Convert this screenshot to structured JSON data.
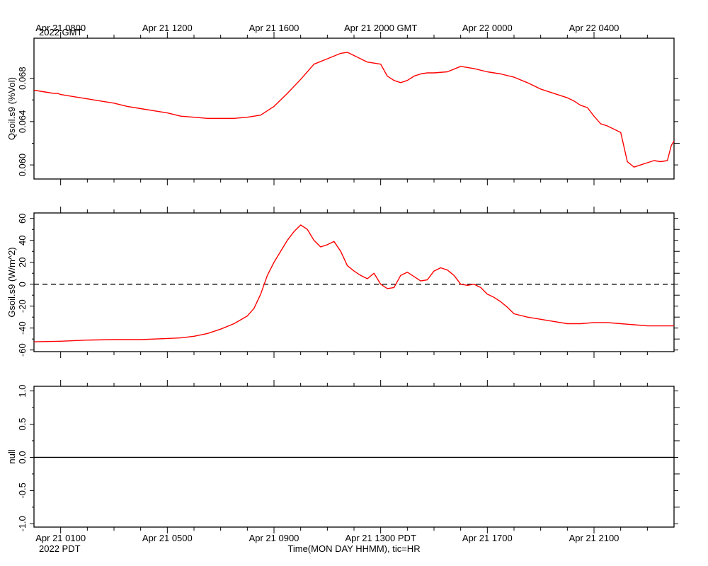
{
  "top_axis": {
    "labels": [
      "Apr 21 0800",
      "Apr 21 1200",
      "Apr 21 1600",
      "Apr 21 2000 GMT",
      "Apr 22 0000",
      "Apr 22 0400"
    ],
    "year_label": "2022 GMT"
  },
  "bottom_axis": {
    "labels": [
      "Apr 21 0100",
      "Apr 21 0500",
      "Apr 21 0900",
      "Apr 21 1300 PDT",
      "Apr 21 1700",
      "Apr 21 2100"
    ],
    "year_label": "2022 PDT",
    "title": "Time(MON DAY HHMM), tic=HR"
  },
  "colors": {
    "series": "#ff0000",
    "axis": "#000000",
    "zero_line": "#000000"
  },
  "chart_data": [
    {
      "type": "line",
      "ylabel": "Qsoil.s9 (%Vol)",
      "ylim": [
        0.0587,
        0.0717
      ],
      "yticks": [
        "0.060",
        "0.064",
        "0.068"
      ],
      "ytick_values": [
        0.06,
        0.064,
        0.068
      ],
      "xlim_hours_pdt": [
        0,
        24
      ],
      "series": [
        {
          "x_hours": [
            0,
            0.5,
            0.75,
            0.9,
            1,
            1.5,
            2,
            2.5,
            3,
            3.5,
            4,
            4.5,
            5,
            5.5,
            6,
            6.5,
            7,
            7.5,
            8,
            8.5,
            9,
            9.5,
            10,
            10.5,
            11,
            11.5,
            11.75,
            12,
            12.5,
            13,
            13.25,
            13.5,
            13.75,
            14,
            14.25,
            14.5,
            14.75,
            15,
            15.5,
            16,
            16.5,
            17,
            17.5,
            18,
            18.5,
            19,
            19.5,
            20,
            20.25,
            20.5,
            20.75,
            21,
            21.25,
            21.5,
            21.75,
            22,
            22.25,
            22.5,
            22.75,
            23,
            23.25,
            23.5,
            23.75,
            23.9,
            24
          ],
          "y": [
            0.0669,
            0.0667,
            0.0666,
            0.0666,
            0.0665,
            0.0663,
            0.0661,
            0.0659,
            0.0657,
            0.0654,
            0.0652,
            0.065,
            0.0648,
            0.0645,
            0.0644,
            0.0643,
            0.0643,
            0.0643,
            0.0644,
            0.0646,
            0.0654,
            0.0666,
            0.0679,
            0.0693,
            0.0698,
            0.0703,
            0.0704,
            0.0701,
            0.0695,
            0.0693,
            0.0682,
            0.0678,
            0.0676,
            0.0678,
            0.0682,
            0.0684,
            0.0685,
            0.0685,
            0.0686,
            0.0691,
            0.0689,
            0.0686,
            0.0684,
            0.0681,
            0.0676,
            0.067,
            0.0666,
            0.0662,
            0.0659,
            0.0655,
            0.0653,
            0.0645,
            0.0638,
            0.0636,
            0.0633,
            0.063,
            0.0603,
            0.0598,
            0.06,
            0.0602,
            0.0604,
            0.0603,
            0.0604,
            0.0618,
            0.0622
          ]
        }
      ]
    },
    {
      "type": "line",
      "ylabel": "Gsoil.s9 (W/m^2)",
      "ylim": [
        -61.5,
        65
      ],
      "yticks": [
        "-60",
        "-40",
        "-20",
        "0",
        "20",
        "40",
        "60"
      ],
      "ytick_values": [
        -60,
        -40,
        -20,
        0,
        20,
        40,
        60
      ],
      "xlim_hours_pdt": [
        0,
        24
      ],
      "reference_line": {
        "y": 0,
        "style": "dashed"
      },
      "series": [
        {
          "x_hours": [
            0,
            1,
            2,
            3,
            4,
            5,
            5.5,
            6,
            6.5,
            7,
            7.5,
            8,
            8.25,
            8.5,
            8.75,
            9,
            9.25,
            9.5,
            9.75,
            10,
            10.25,
            10.5,
            10.75,
            11,
            11.25,
            11.5,
            11.75,
            12,
            12.25,
            12.5,
            12.75,
            13,
            13.25,
            13.5,
            13.75,
            14,
            14.25,
            14.5,
            14.75,
            15,
            15.25,
            15.5,
            15.75,
            16,
            16.25,
            16.5,
            16.75,
            17,
            17.25,
            17.5,
            17.75,
            18,
            18.5,
            19,
            19.5,
            20,
            20.5,
            21,
            21.5,
            22,
            22.5,
            23,
            23.5,
            24
          ],
          "y": [
            -52.5,
            -52,
            -51,
            -50.5,
            -50.5,
            -49.5,
            -49,
            -47.5,
            -45,
            -41,
            -36,
            -29,
            -22,
            -9,
            8,
            20,
            30,
            40,
            48,
            54,
            50,
            40,
            34,
            36,
            39,
            30,
            17,
            12,
            8,
            5,
            10,
            0,
            -4,
            -3,
            8,
            11,
            7,
            3,
            4,
            12,
            15,
            13,
            8,
            0,
            -1,
            0,
            -3,
            -9,
            -12,
            -16,
            -21,
            -27,
            -30,
            -32,
            -34,
            -36,
            -36,
            -35,
            -35,
            -36,
            -37,
            -38,
            -38,
            -38
          ]
        }
      ]
    },
    {
      "type": "line",
      "ylabel": "null",
      "ylim": [
        -1.05,
        1.07
      ],
      "yticks": [
        "-1.0",
        "-0.5",
        "0.0",
        "0.5",
        "1.0"
      ],
      "ytick_values": [
        -1,
        -0.5,
        0,
        0.5,
        1
      ],
      "xlim_hours_pdt": [
        0,
        24
      ],
      "series": [
        {
          "x_hours": [
            0,
            24
          ],
          "y": [
            0,
            0
          ]
        }
      ]
    }
  ]
}
